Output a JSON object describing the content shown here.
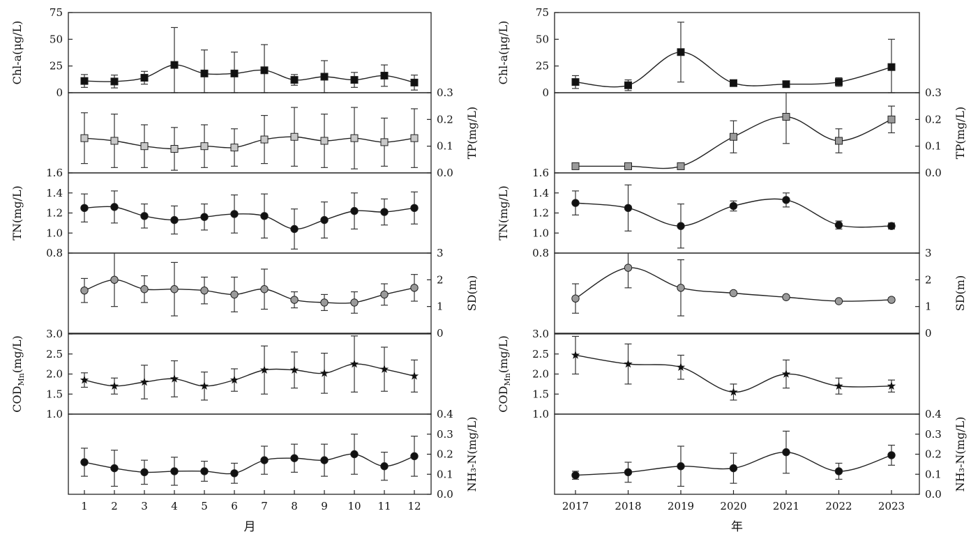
{
  "chart_data": [
    {
      "type": "line",
      "panel": "monthly",
      "xlabel": "月",
      "x": [
        1,
        2,
        3,
        4,
        5,
        6,
        7,
        8,
        9,
        10,
        11,
        12
      ],
      "x_tick_labels": [
        "1",
        "2",
        "3",
        "4",
        "5",
        "6",
        "7",
        "8",
        "9",
        "10",
        "11",
        "12"
      ],
      "subplots": [
        {
          "name": "Chl-a",
          "ylabel": "Chl-a(μg/L)",
          "y_side": "left",
          "ylim": [
            0,
            75
          ],
          "ticks": [
            0,
            25,
            50,
            75
          ],
          "tick_labels": [
            "0",
            "25",
            "50",
            "75"
          ],
          "marker": "square",
          "fill": "#111111",
          "values": [
            11,
            10.5,
            14,
            26,
            18,
            18,
            21,
            12,
            15,
            12,
            16,
            9.5
          ],
          "error": [
            6,
            6,
            6,
            35,
            22,
            20,
            24,
            5,
            15,
            7,
            10,
            7
          ]
        },
        {
          "name": "TP",
          "ylabel": "TP(mg/L)",
          "y_side": "right",
          "ylim": [
            0,
            0.3
          ],
          "ticks": [
            0,
            0.1,
            0.2,
            0.3
          ],
          "tick_labels": [
            "0.0",
            "0.1",
            "0.2",
            "0.3"
          ],
          "marker": "square",
          "fill": "#c8c8c8",
          "values": [
            0.13,
            0.12,
            0.1,
            0.09,
            0.1,
            0.095,
            0.125,
            0.135,
            0.12,
            0.13,
            0.115,
            0.13
          ],
          "error": [
            0.095,
            0.1,
            0.08,
            0.08,
            0.08,
            0.07,
            0.09,
            0.11,
            0.1,
            0.115,
            0.09,
            0.11
          ]
        },
        {
          "name": "TN",
          "ylabel": "TN(mg/L)",
          "y_side": "left",
          "ylim": [
            0.8,
            1.6
          ],
          "ticks": [
            0.8,
            1.0,
            1.2,
            1.4,
            1.6
          ],
          "tick_labels": [
            "0.8",
            "1.0",
            "1.2",
            "1.4",
            "1.6"
          ],
          "marker": "circle",
          "fill": "#111111",
          "values": [
            1.25,
            1.26,
            1.17,
            1.13,
            1.16,
            1.19,
            1.17,
            1.04,
            1.13,
            1.22,
            1.21,
            1.25
          ],
          "error": [
            0.14,
            0.16,
            0.12,
            0.14,
            0.13,
            0.19,
            0.22,
            0.2,
            0.18,
            0.18,
            0.13,
            0.16
          ]
        },
        {
          "name": "SD",
          "ylabel": "SD(m)",
          "y_side": "right",
          "ylim": [
            0,
            3
          ],
          "ticks": [
            0,
            1,
            2,
            3
          ],
          "tick_labels": [
            "0",
            "1",
            "2",
            "3"
          ],
          "marker": "circle",
          "fill": "#9a9a9a",
          "values": [
            1.6,
            2.0,
            1.65,
            1.65,
            1.6,
            1.45,
            1.65,
            1.25,
            1.15,
            1.15,
            1.45,
            1.7
          ],
          "error": [
            0.45,
            1.0,
            0.5,
            1.0,
            0.5,
            0.65,
            0.75,
            0.3,
            0.3,
            0.4,
            0.4,
            0.5
          ]
        },
        {
          "name": "CODMn",
          "ylabel": "COD_Mn(mg/L)",
          "y_side": "left",
          "ylim": [
            1.0,
            3.0
          ],
          "ticks": [
            1.0,
            1.5,
            2.0,
            2.5,
            3.0
          ],
          "tick_labels": [
            "1.0",
            "1.5",
            "2.0",
            "2.5",
            "3.0"
          ],
          "marker": "star",
          "fill": "#111111",
          "values": [
            1.85,
            1.7,
            1.8,
            1.88,
            1.7,
            1.85,
            2.1,
            2.1,
            2.02,
            2.25,
            2.12,
            1.95
          ],
          "error": [
            0.18,
            0.2,
            0.42,
            0.45,
            0.35,
            0.28,
            0.6,
            0.45,
            0.5,
            0.7,
            0.55,
            0.4
          ]
        },
        {
          "name": "NH3-N",
          "ylabel": "NH₃-N(mg/L)",
          "y_side": "right",
          "ylim": [
            0,
            0.4
          ],
          "ticks": [
            0,
            0.1,
            0.2,
            0.3,
            0.4
          ],
          "tick_labels": [
            "0.0",
            "0.1",
            "0.2",
            "0.3",
            "0.4"
          ],
          "marker": "circle",
          "fill": "#111111",
          "values": [
            0.16,
            0.13,
            0.11,
            0.115,
            0.115,
            0.105,
            0.17,
            0.18,
            0.17,
            0.2,
            0.14,
            0.19
          ],
          "error": [
            0.07,
            0.09,
            0.06,
            0.07,
            0.05,
            0.05,
            0.07,
            0.07,
            0.08,
            0.1,
            0.07,
            0.1
          ]
        }
      ]
    },
    {
      "type": "line",
      "panel": "annual",
      "xlabel": "年",
      "x": [
        2017,
        2018,
        2019,
        2020,
        2021,
        2022,
        2023
      ],
      "x_tick_labels": [
        "2017",
        "2018",
        "2019",
        "2020",
        "2021",
        "2022",
        "2023"
      ],
      "subplots": [
        {
          "name": "Chl-a",
          "ylabel": "Chl-a(μg/L)",
          "y_side": "left",
          "ylim": [
            0,
            75
          ],
          "ticks": [
            0,
            25,
            50,
            75
          ],
          "tick_labels": [
            "0",
            "25",
            "50",
            "75"
          ],
          "marker": "square",
          "fill": "#111111",
          "values": [
            10,
            7,
            38,
            9,
            8,
            10,
            24
          ],
          "error": [
            6,
            5,
            28,
            2,
            2,
            4,
            26
          ]
        },
        {
          "name": "TP",
          "ylabel": "TP(mg/L)",
          "y_side": "right",
          "ylim": [
            0,
            0.3
          ],
          "ticks": [
            0,
            0.1,
            0.2,
            0.3
          ],
          "tick_labels": [
            "0.0",
            "0.1",
            "0.2",
            "0.3"
          ],
          "marker": "square",
          "fill": "#9a9a9a",
          "values": [
            0.025,
            0.025,
            0.025,
            0.135,
            0.21,
            0.12,
            0.2
          ],
          "error": [
            0.01,
            0.008,
            0.008,
            0.06,
            0.1,
            0.045,
            0.05
          ]
        },
        {
          "name": "TN",
          "ylabel": "TN(mg/L)",
          "y_side": "left",
          "ylim": [
            0.8,
            1.6
          ],
          "ticks": [
            0.8,
            1.0,
            1.2,
            1.4,
            1.6
          ],
          "tick_labels": [
            "0.8",
            "1.0",
            "1.2",
            "1.4",
            "1.6"
          ],
          "marker": "circle",
          "fill": "#111111",
          "values": [
            1.3,
            1.25,
            1.07,
            1.27,
            1.33,
            1.08,
            1.07
          ],
          "error": [
            0.12,
            0.23,
            0.22,
            0.05,
            0.07,
            0.04,
            0.03
          ]
        },
        {
          "name": "SD",
          "ylabel": "SD(m)",
          "y_side": "right",
          "ylim": [
            0,
            3
          ],
          "ticks": [
            0,
            1,
            2,
            3
          ],
          "tick_labels": [
            "0",
            "1",
            "2",
            "3"
          ],
          "marker": "circle",
          "fill": "#9a9a9a",
          "values": [
            1.3,
            2.45,
            1.7,
            1.5,
            1.35,
            1.2,
            1.25
          ],
          "error": [
            0.55,
            0.75,
            1.05,
            0.08,
            0.07,
            0.06,
            0.07
          ]
        },
        {
          "name": "CODMn",
          "ylabel": "COD_Mn(mg/L)",
          "y_side": "left",
          "ylim": [
            1.0,
            3.0
          ],
          "ticks": [
            1.0,
            1.5,
            2.0,
            2.5,
            3.0
          ],
          "tick_labels": [
            "1.0",
            "1.5",
            "2.0",
            "2.5",
            "3.0"
          ],
          "marker": "star",
          "fill": "#111111",
          "values": [
            2.47,
            2.25,
            2.17,
            1.55,
            2.0,
            1.7,
            1.7
          ],
          "error": [
            0.47,
            0.5,
            0.3,
            0.2,
            0.35,
            0.2,
            0.15
          ]
        },
        {
          "name": "NH3-N",
          "ylabel": "NH₃-N(mg/L)",
          "y_side": "right",
          "ylim": [
            0,
            0.4
          ],
          "ticks": [
            0,
            0.1,
            0.2,
            0.3,
            0.4
          ],
          "tick_labels": [
            "0.0",
            "0.1",
            "0.2",
            "0.3",
            "0.4"
          ],
          "marker": "circle",
          "fill": "#111111",
          "values": [
            0.095,
            0.11,
            0.14,
            0.13,
            0.21,
            0.115,
            0.195
          ],
          "error": [
            0.02,
            0.05,
            0.1,
            0.075,
            0.105,
            0.04,
            0.05
          ]
        }
      ]
    }
  ]
}
